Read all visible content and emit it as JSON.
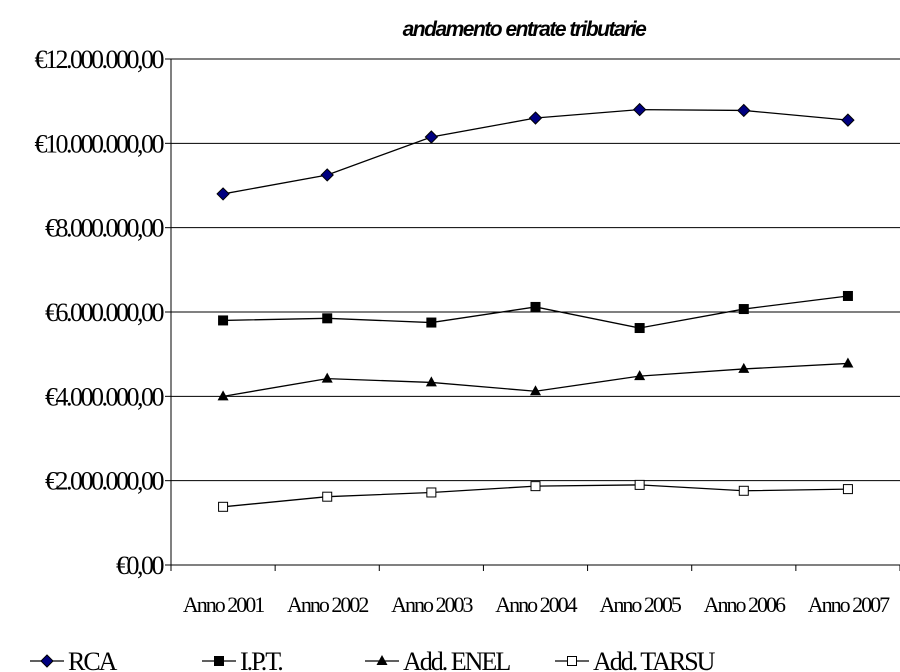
{
  "chart_data": {
    "type": "line",
    "title": "andamento entrate tributarie",
    "categories": [
      "Anno 2001",
      "Anno 2002",
      "Anno 2003",
      "Anno 2004",
      "Anno 2005",
      "Anno 2006",
      "Anno 2007"
    ],
    "y_ticks": [
      "€0,00",
      "€2.000.000,00",
      "€4.000.000,00",
      "€6.000.000,00",
      "€8.000.000,00",
      "€10.000.000,00",
      "€12.000.000,00"
    ],
    "ylim": [
      0,
      12000000
    ],
    "grid": true,
    "legend_position": "bottom",
    "series": [
      {
        "name": "RCA",
        "marker": "diamond",
        "color": "#000080",
        "values": [
          8800000,
          9250000,
          10150000,
          10600000,
          10800000,
          10780000,
          10550000
        ]
      },
      {
        "name": "I.P.T.",
        "marker": "square",
        "color": "#000000",
        "values": [
          5800000,
          5850000,
          5750000,
          6120000,
          5620000,
          6070000,
          6380000
        ]
      },
      {
        "name": "Add. ENEL",
        "marker": "triangle",
        "color": "#000000",
        "values": [
          4000000,
          4420000,
          4330000,
          4120000,
          4480000,
          4650000,
          4780000
        ]
      },
      {
        "name": "Add. TARSU",
        "marker": "square-open",
        "color": "#000000",
        "values": [
          1380000,
          1620000,
          1720000,
          1870000,
          1900000,
          1760000,
          1800000
        ]
      }
    ]
  }
}
